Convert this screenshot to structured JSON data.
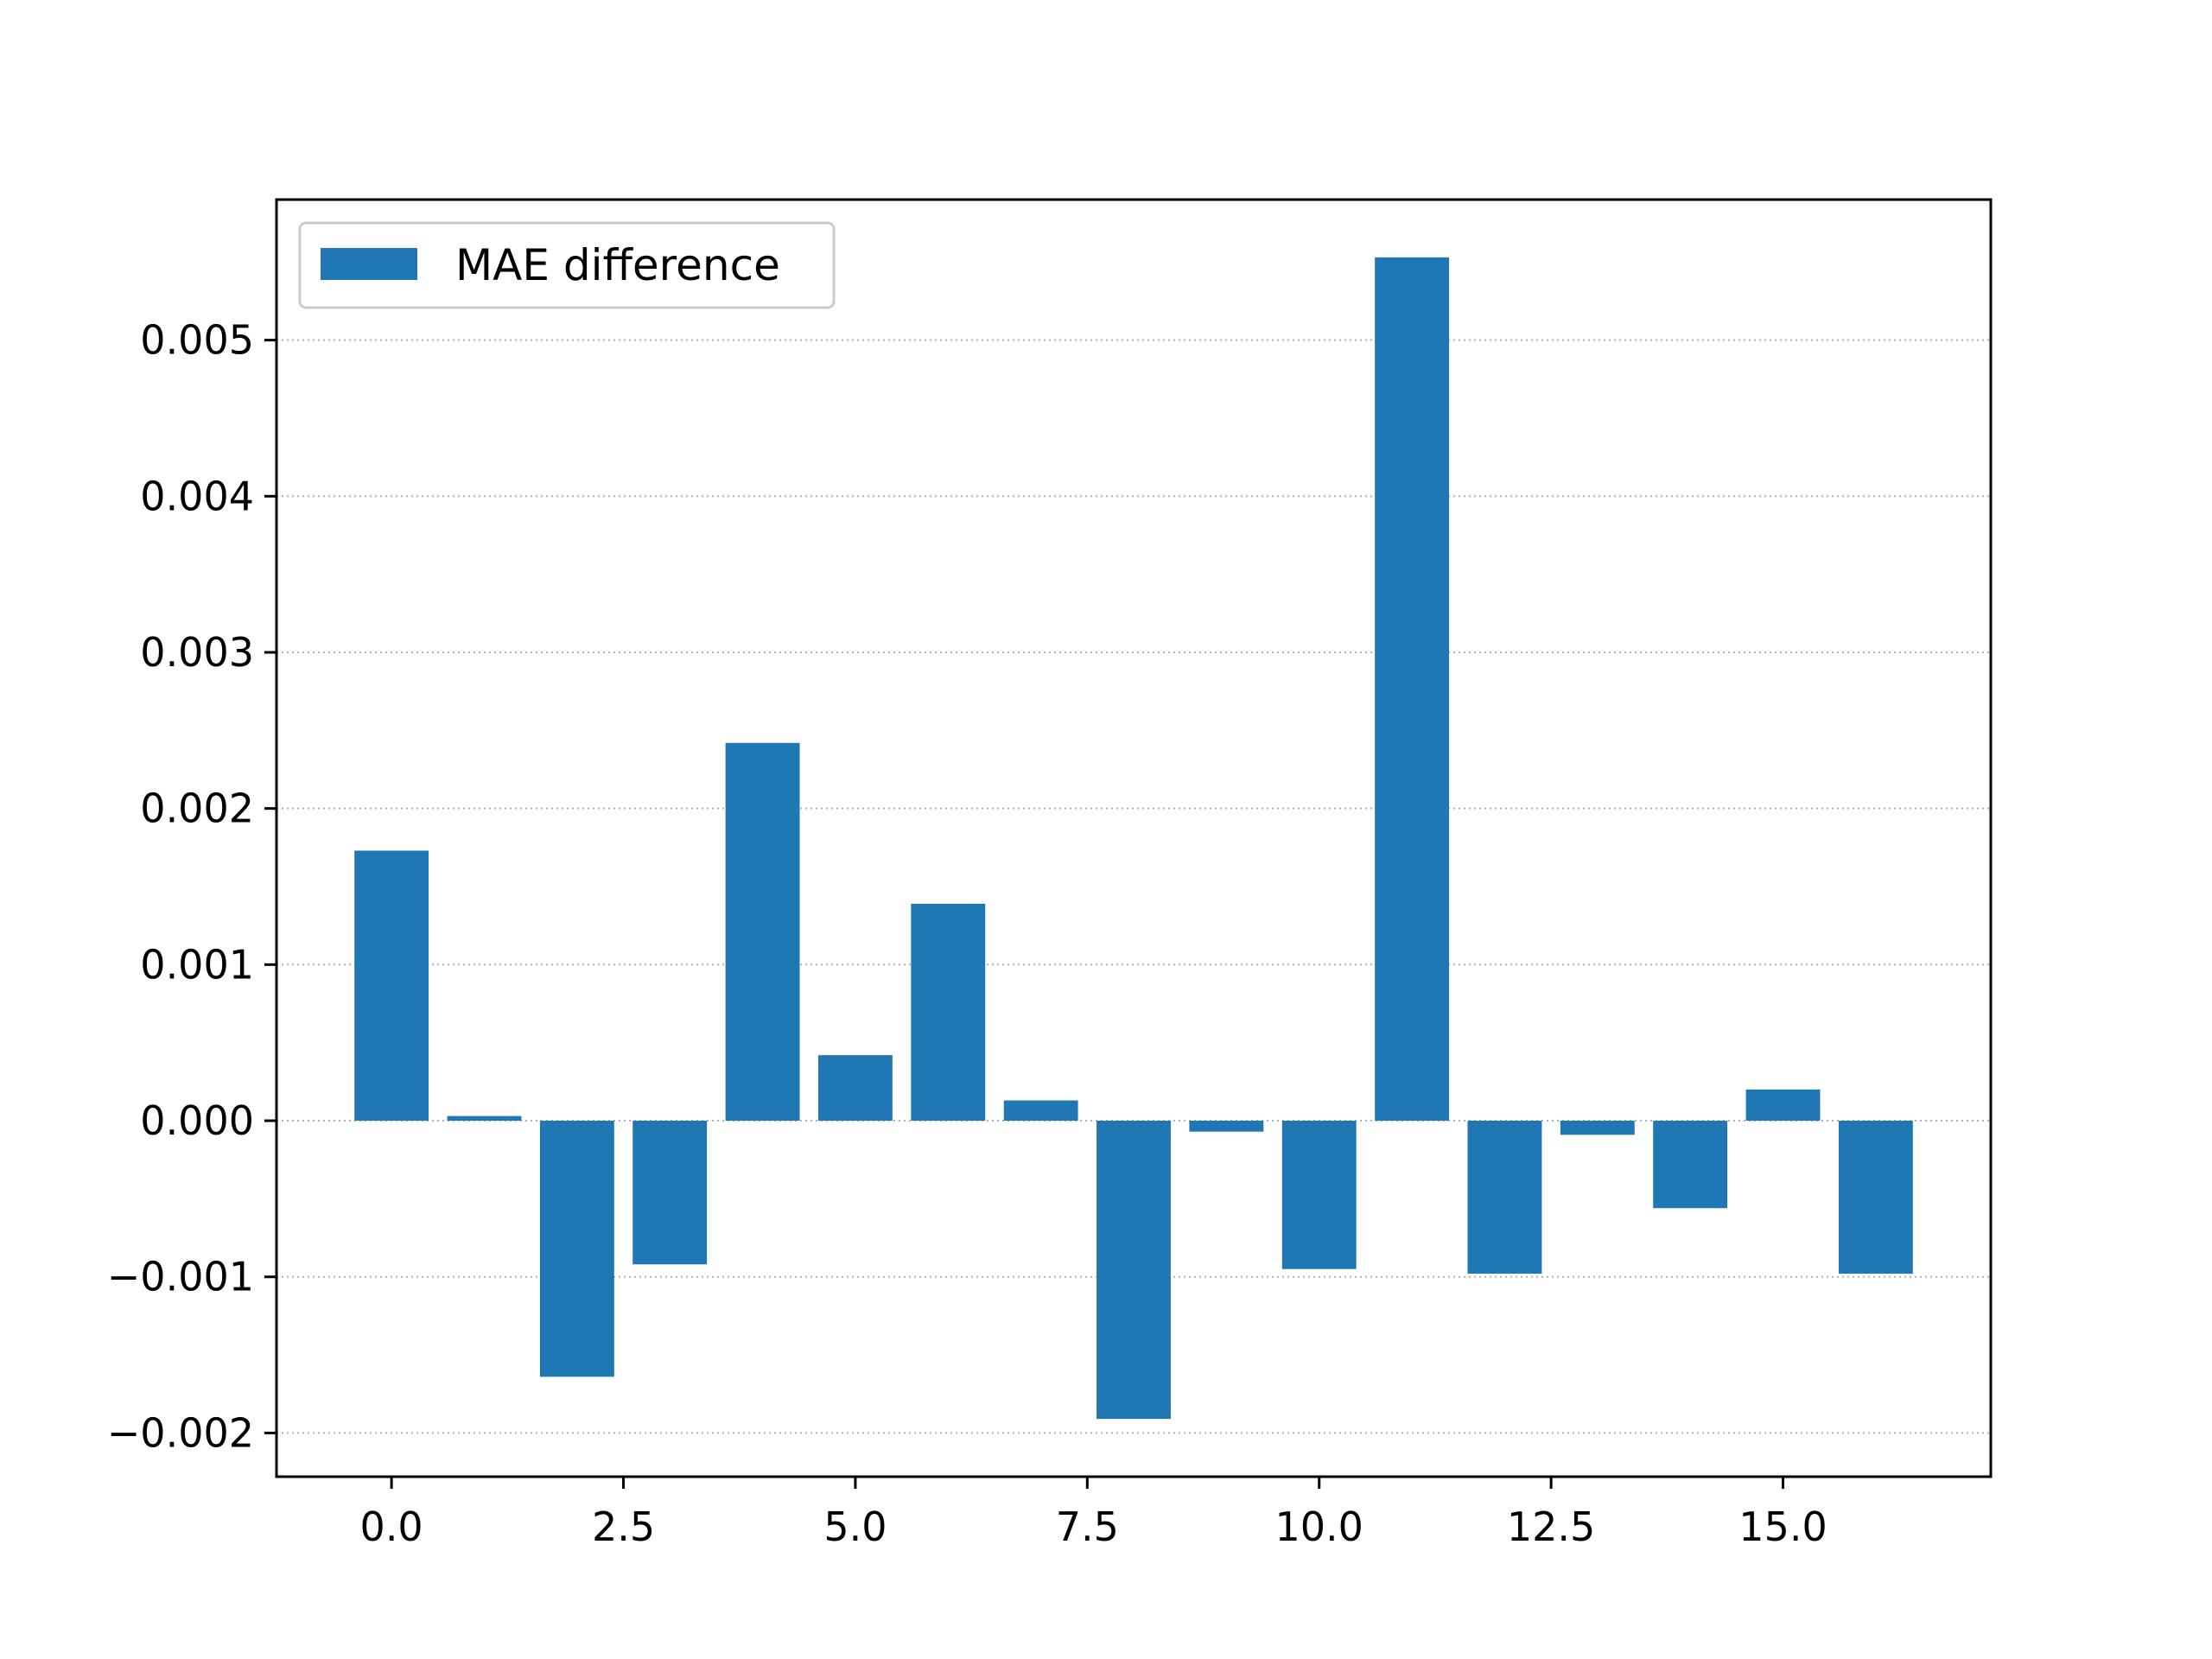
{
  "chart_data": {
    "type": "bar",
    "title": "",
    "xlabel": "",
    "ylabel": "",
    "x": [
      0,
      1,
      2,
      3,
      4,
      5,
      6,
      7,
      8,
      9,
      10,
      11,
      12,
      13,
      14,
      15,
      16
    ],
    "values": [
      0.00173,
      3e-05,
      -0.00164,
      -0.00092,
      0.00242,
      0.00042,
      0.00139,
      0.00013,
      -0.00191,
      -7e-05,
      -0.00095,
      0.00553,
      -0.00098,
      -9e-05,
      -0.00056,
      0.0002,
      -0.00098
    ],
    "series": [
      {
        "name": "MAE difference"
      }
    ],
    "xlim": [
      -1.24,
      17.24
    ],
    "ylim": [
      -0.00228,
      0.0059
    ],
    "xticks": [
      0.0,
      2.5,
      5.0,
      7.5,
      10.0,
      12.5,
      15.0
    ],
    "xtick_labels": [
      "0.0",
      "2.5",
      "5.0",
      "7.5",
      "10.0",
      "12.5",
      "15.0"
    ],
    "yticks": [
      -0.002,
      -0.001,
      0.0,
      0.001,
      0.002,
      0.003,
      0.004,
      0.005
    ],
    "ytick_labels": [
      "−0.002",
      "−0.001",
      "0.000",
      "0.001",
      "0.002",
      "0.003",
      "0.004",
      "0.005"
    ],
    "grid": "y-dotted",
    "legend": "upper-left",
    "bar_color": "#1f77b4"
  }
}
